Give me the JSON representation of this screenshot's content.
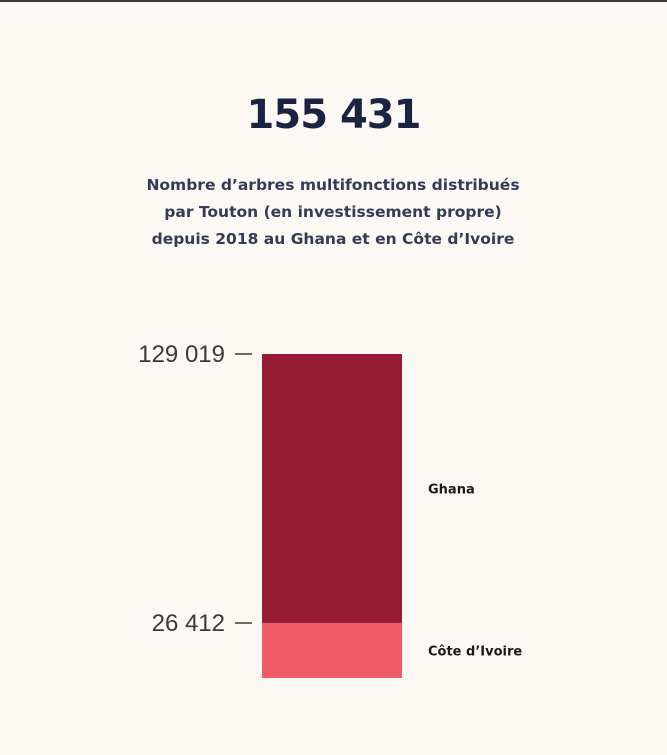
{
  "headline": "155 431",
  "subtitle": {
    "line1": "Nombre d’arbres multifonctions distribués",
    "line2": "par Touton (en investissement propre)",
    "line3": "depuis 2018 au Ghana et en Côte d’Ivoire"
  },
  "colors": {
    "ghana": "#981b34",
    "cote_divoire": "#ee5b67",
    "headline": "#1c2340",
    "background": "#fcf9f4"
  },
  "chart_data": {
    "type": "bar",
    "stacked": true,
    "total": 155431,
    "series": [
      {
        "name": "Côte d’Ivoire",
        "value": 26412,
        "value_label": "26 412",
        "color": "#ee5b67"
      },
      {
        "name": "Ghana",
        "value": 129019,
        "value_label": "129 019",
        "color": "#981b34"
      }
    ]
  }
}
